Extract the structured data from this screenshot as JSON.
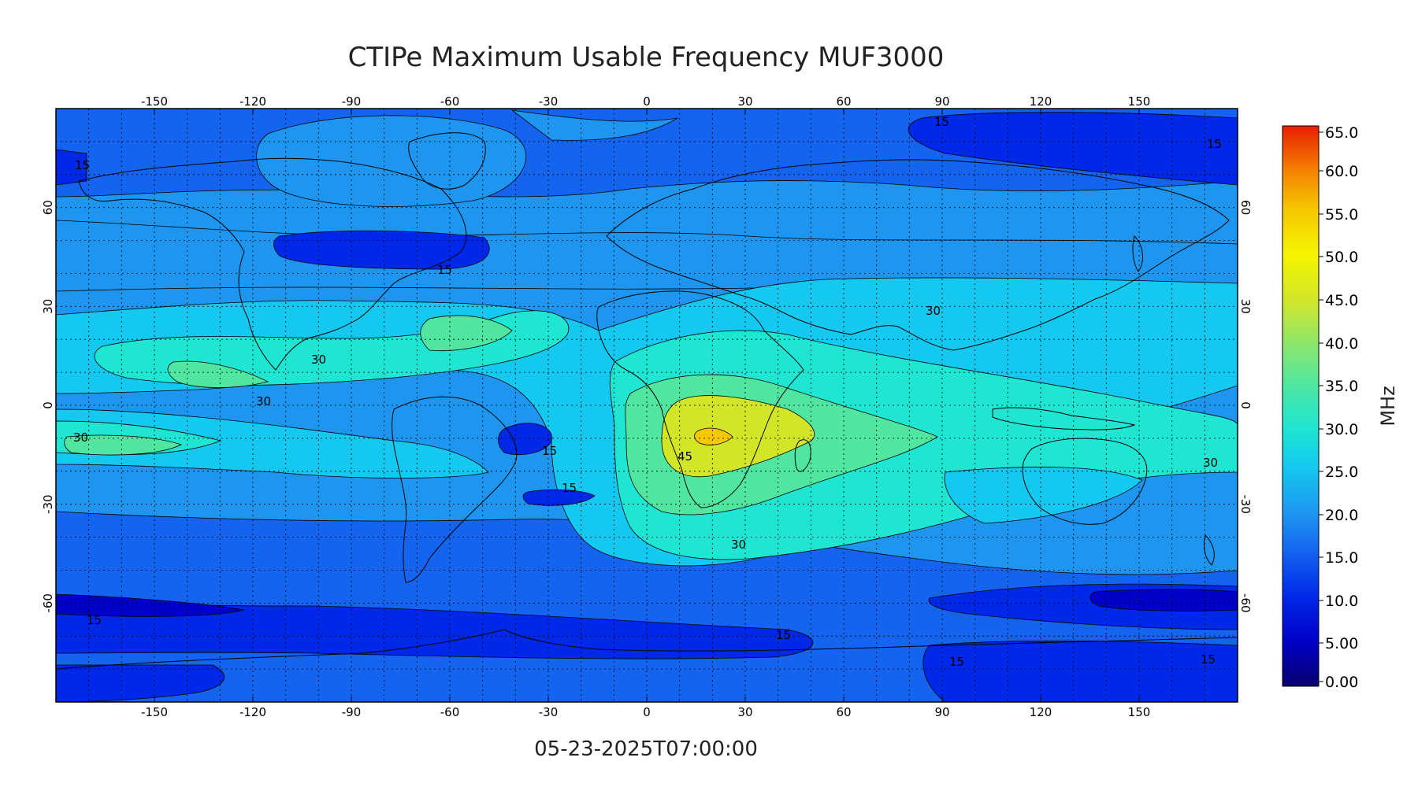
{
  "title": "CTIPe Maximum Usable Frequency MUF3000",
  "timestamp": "05-23-2025T07:00:00",
  "map": {
    "projection": "cylindrical equidistant",
    "lon_range": [
      -180,
      180
    ],
    "lat_range": [
      -90,
      90
    ],
    "grid": "dotted, every 10 degrees",
    "lon_ticks": [
      "-150",
      "-120",
      "-90",
      "-60",
      "-30",
      "0",
      "30",
      "60",
      "90",
      "120",
      "150"
    ],
    "lat_ticks": [
      "60",
      "30",
      "0",
      "-30",
      "-60"
    ]
  },
  "colorbar": {
    "unit": "MHz",
    "labels": [
      "65.0",
      "60.0",
      "55.0",
      "50.0",
      "45.0",
      "40.0",
      "35.0",
      "30.0",
      "25.0",
      "20.0",
      "15.0",
      "10.0",
      "5.00",
      "0.00"
    ],
    "range": [
      0,
      65
    ],
    "colormap": [
      "#08006f",
      "#0000c8",
      "#0028e8",
      "#1464f0",
      "#1e96f0",
      "#14c8f0",
      "#1ee6d2",
      "#50e6a0",
      "#96e664",
      "#d2e628",
      "#f5f500",
      "#f5c800",
      "#f58200",
      "#e61e00"
    ]
  },
  "contour_labels": [
    "15",
    "15",
    "15",
    "15",
    "15",
    "15",
    "15",
    "15",
    "15",
    "15",
    "30",
    "30",
    "30",
    "30",
    "30",
    "30",
    "45"
  ],
  "colors": {
    "contour_line": "#000000",
    "frame": "#000000",
    "background": "#ffffff"
  }
}
